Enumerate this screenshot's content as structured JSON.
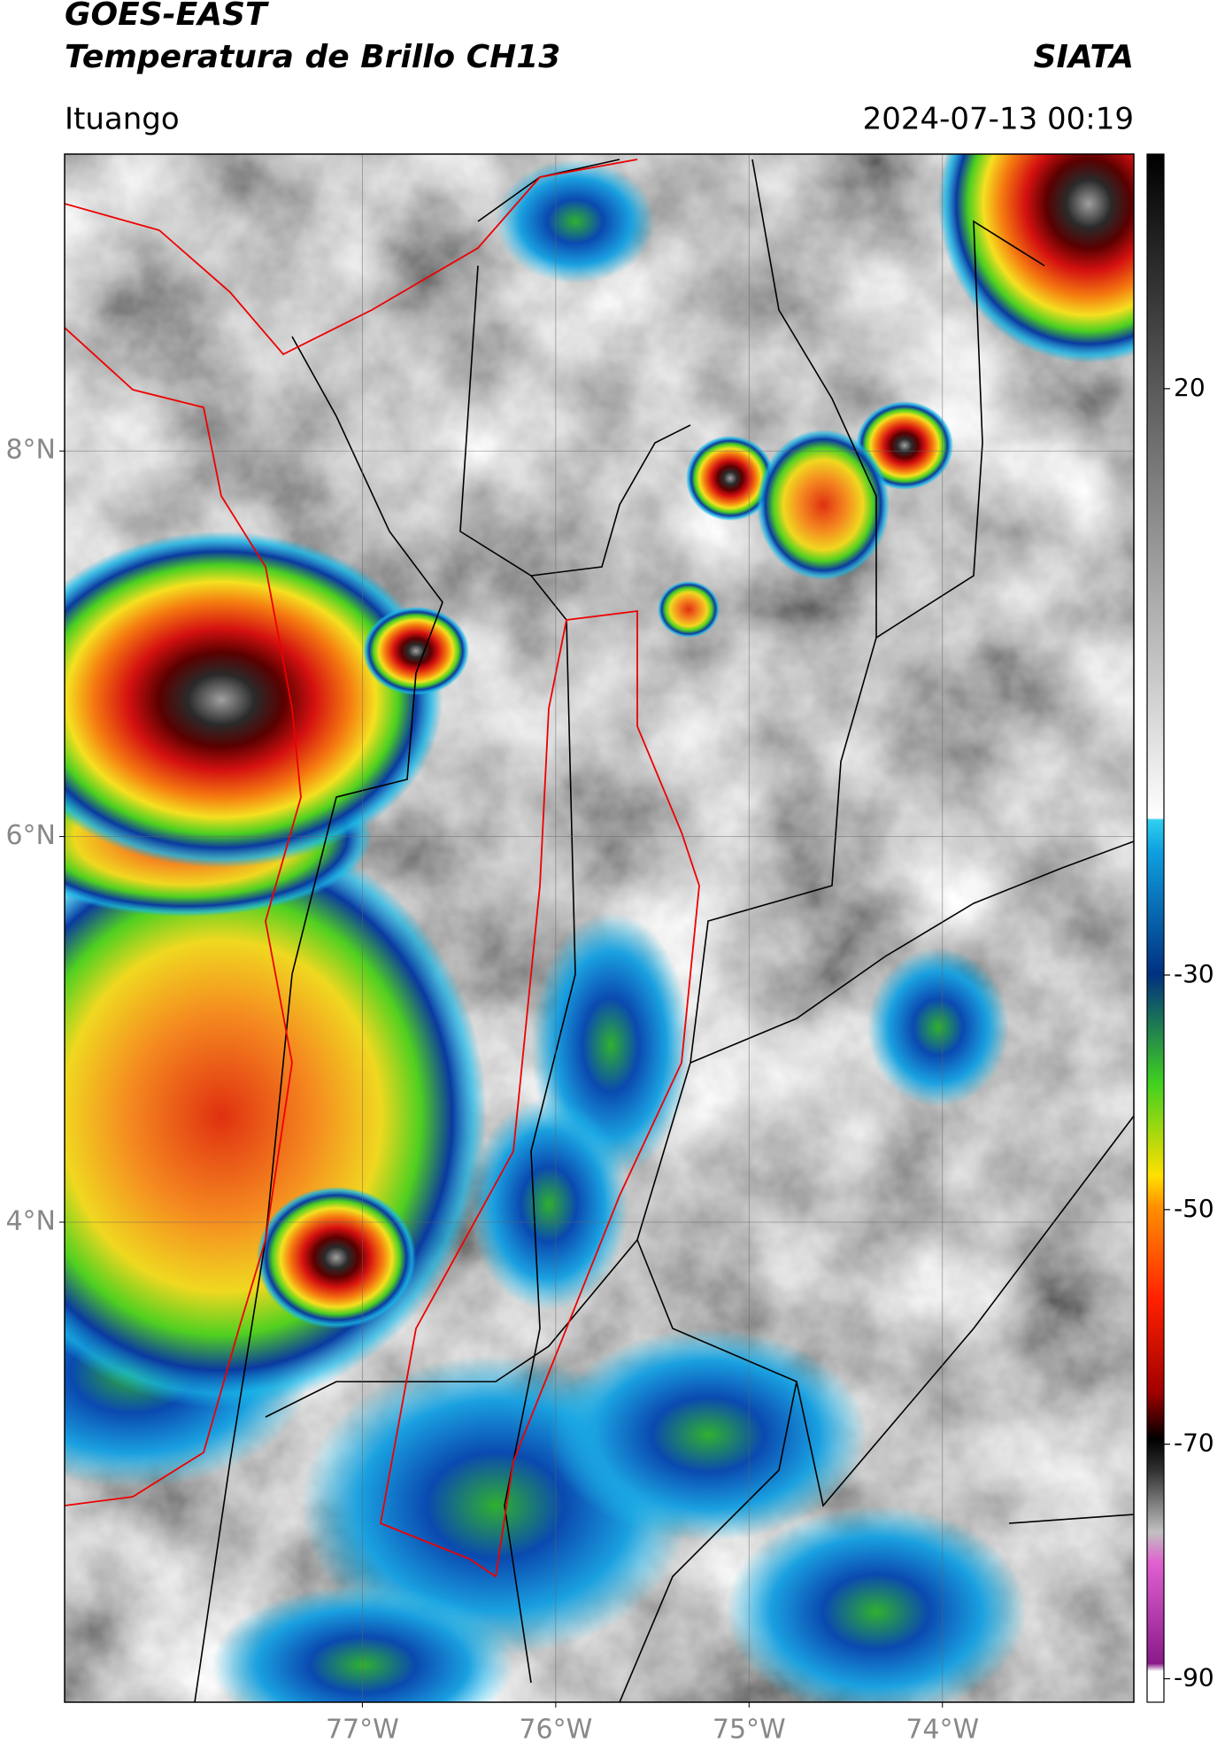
{
  "header": {
    "title": "GOES-EAST",
    "subtitle": "Temperatura de Brillo CH13",
    "source": "SIATA",
    "location": "Ituango",
    "datetime": "2024-07-13 00:19"
  },
  "map": {
    "lon_lim": [
      -78.54,
      -73.01
    ],
    "lat_lim": [
      1.51,
      9.54
    ],
    "lat_ticks": [
      {
        "value": 8,
        "label": "8°N"
      },
      {
        "value": 6,
        "label": "6°N"
      },
      {
        "value": 4,
        "label": "4°N"
      }
    ],
    "lon_ticks": [
      {
        "value": -77,
        "label": "77°W"
      },
      {
        "value": -76,
        "label": "76°W"
      },
      {
        "value": -75,
        "label": "75°W"
      },
      {
        "value": -74,
        "label": "74°W"
      }
    ],
    "grid": true
  },
  "colorbar": {
    "lim": [
      -92,
      40
    ],
    "ticks": [
      20,
      -30,
      -50,
      -70,
      -90
    ]
  }
}
